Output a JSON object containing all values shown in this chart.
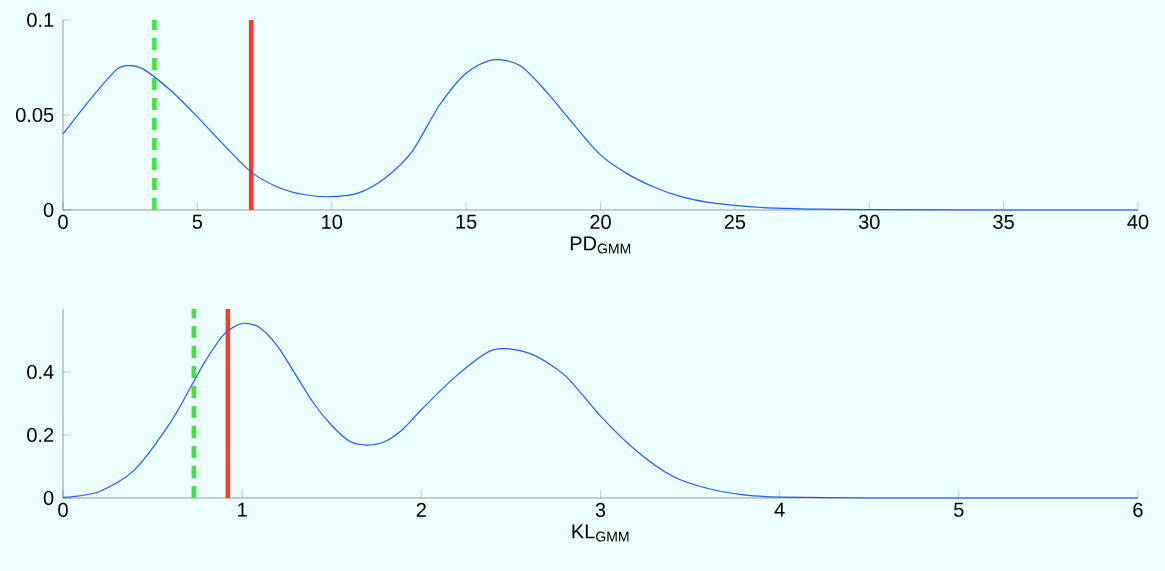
{
  "chart_data": [
    {
      "type": "line",
      "xlabel": "PD$_{GMM}$",
      "xlim": [
        0,
        40
      ],
      "ylim": [
        0,
        0.1
      ],
      "xticks": [
        0,
        5,
        10,
        15,
        20,
        25,
        30,
        35,
        40
      ],
      "yticks": [
        0,
        0.05,
        0.1
      ],
      "series": [
        {
          "color": "#1f5cff",
          "x": [
            0,
            1,
            2,
            2.5,
            3,
            4,
            5,
            6,
            7,
            8,
            9,
            10,
            11,
            12,
            13,
            14,
            15,
            16,
            17,
            18,
            19,
            20,
            21,
            22,
            23,
            24,
            25,
            26,
            27,
            28,
            30,
            35,
            40
          ],
          "values": [
            0.04,
            0.058,
            0.074,
            0.076,
            0.074,
            0.063,
            0.049,
            0.034,
            0.02,
            0.012,
            0.008,
            0.007,
            0.009,
            0.017,
            0.031,
            0.055,
            0.072,
            0.079,
            0.076,
            0.062,
            0.045,
            0.029,
            0.019,
            0.012,
            0.007,
            0.004,
            0.0024,
            0.0013,
            0.0008,
            0.0004,
            0.0002,
            0,
            0
          ]
        }
      ],
      "ref_lines": [
        {
          "axis": "x",
          "value": 3.4,
          "color": "#33ee33",
          "line_style": "dashed"
        },
        {
          "axis": "x",
          "value": 7,
          "color": "#ff3a22",
          "line_style": "solid"
        }
      ]
    },
    {
      "type": "line",
      "xlabel": "KL$_{GMM}$",
      "xlim": [
        0,
        6
      ],
      "ylim": [
        0,
        0.6
      ],
      "xticks": [
        0,
        1,
        2,
        3,
        4,
        5,
        6
      ],
      "yticks": [
        0,
        0.2,
        0.4
      ],
      "series": [
        {
          "color": "#1f5cff",
          "x": [
            0,
            0.2,
            0.4,
            0.6,
            0.73,
            0.8,
            0.9,
            1.0,
            1.1,
            1.2,
            1.3,
            1.4,
            1.5,
            1.6,
            1.7,
            1.8,
            1.9,
            2.0,
            2.2,
            2.4,
            2.6,
            2.8,
            3.0,
            3.2,
            3.4,
            3.6,
            3.8,
            4.0,
            4.5,
            5,
            6
          ],
          "values": [
            0.002,
            0.02,
            0.09,
            0.24,
            0.37,
            0.44,
            0.52,
            0.554,
            0.54,
            0.48,
            0.39,
            0.3,
            0.23,
            0.18,
            0.168,
            0.18,
            0.22,
            0.28,
            0.39,
            0.47,
            0.46,
            0.39,
            0.26,
            0.15,
            0.07,
            0.03,
            0.01,
            0.003,
            0,
            0,
            0
          ]
        }
      ],
      "ref_lines": [
        {
          "axis": "x",
          "value": 0.73,
          "color": "#33ee33",
          "line_style": "dashed"
        },
        {
          "axis": "x",
          "value": 0.92,
          "color": "#ff3a22",
          "line_style": "solid"
        }
      ]
    }
  ]
}
